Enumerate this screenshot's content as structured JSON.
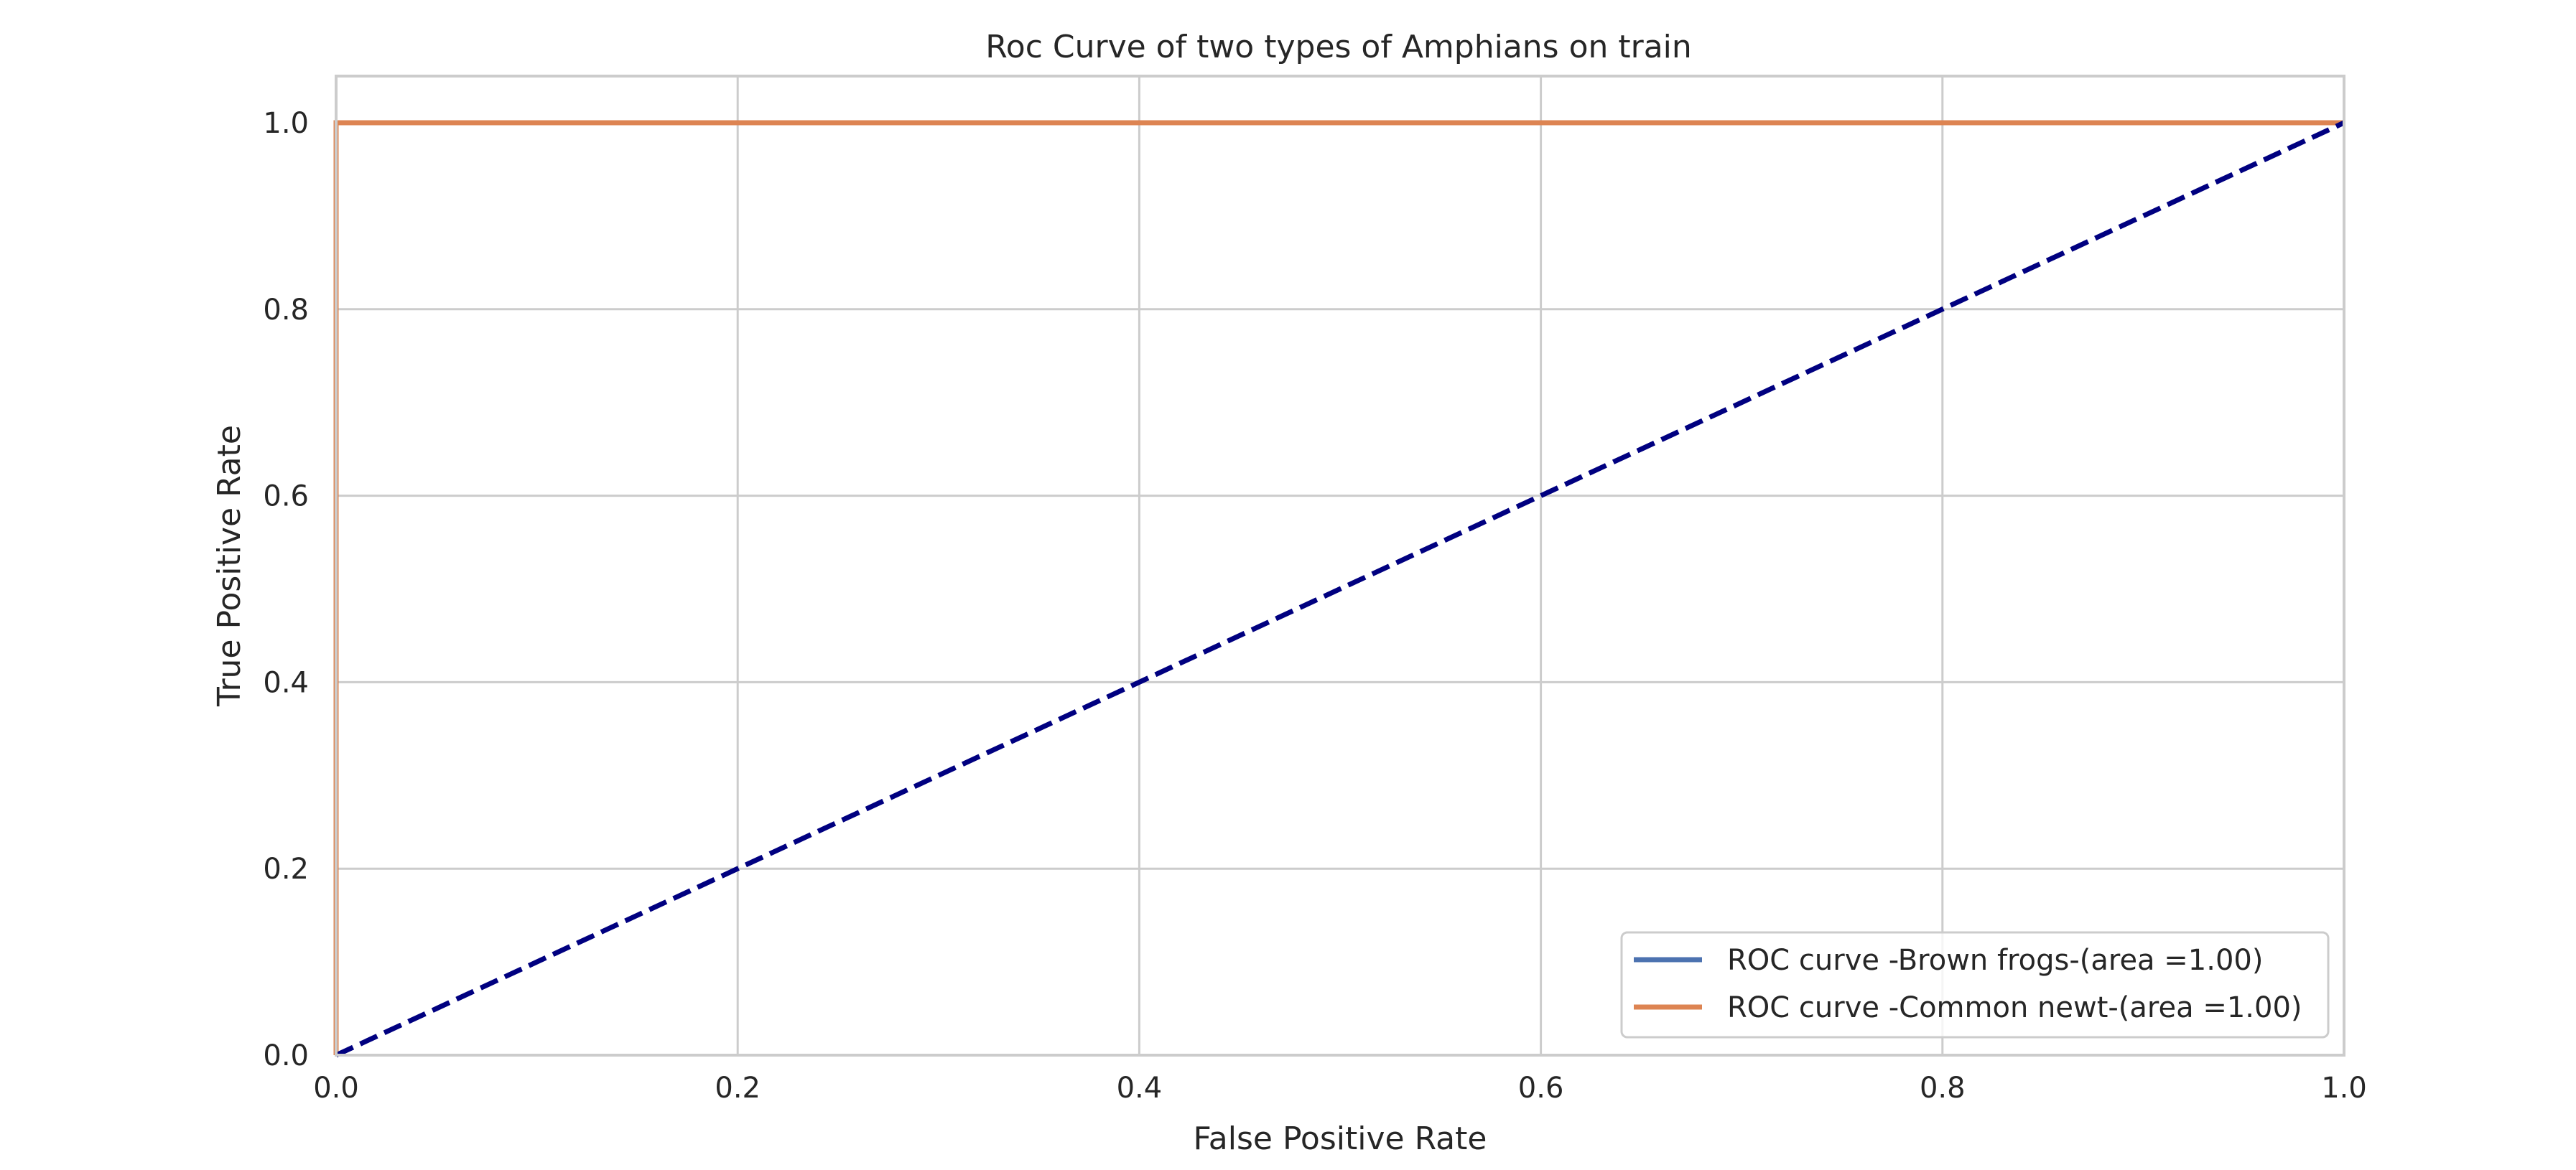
{
  "chart_data": {
    "type": "line",
    "title": "Roc Curve of two types of Amphians on train",
    "xlabel": "False Positive Rate",
    "ylabel": "True Positive Rate",
    "xlim": [
      0.0,
      1.0
    ],
    "ylim": [
      0.0,
      1.05
    ],
    "xticks": [
      "0.0",
      "0.2",
      "0.4",
      "0.6",
      "0.8",
      "1.0"
    ],
    "yticks": [
      "0.0",
      "0.2",
      "0.4",
      "0.6",
      "0.8",
      "1.0"
    ],
    "grid": true,
    "legend_position": "lower-right",
    "series": [
      {
        "name": "ROC curve -Brown frogs-(area =1.00)",
        "color": "#4c72b0",
        "style": "solid",
        "x": [
          0.0,
          0.0,
          1.0
        ],
        "y": [
          0.0,
          1.0,
          1.0
        ]
      },
      {
        "name": "ROC curve -Common newt-(area =1.00)",
        "color": "#dd8452",
        "style": "solid",
        "x": [
          0.0,
          0.0,
          1.0
        ],
        "y": [
          0.0,
          1.0,
          1.0
        ]
      }
    ],
    "reference_line": {
      "color": "#000080",
      "style": "dashed",
      "x": [
        0.0,
        1.0
      ],
      "y": [
        0.0,
        1.0
      ]
    }
  }
}
